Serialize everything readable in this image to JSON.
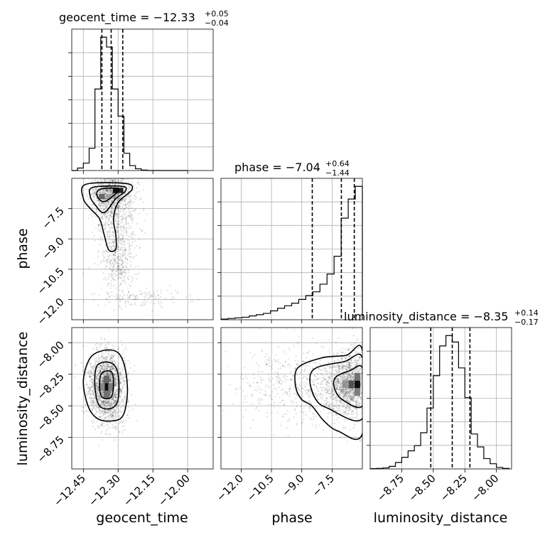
{
  "chart_data": {
    "type": "corner",
    "parameters": [
      {
        "name": "geocent_time",
        "range": [
          -12.5,
          -11.89
        ],
        "ticks": [
          -12.45,
          -12.3,
          -12.15,
          -12.0
        ],
        "tick_labels": [
          "−12.45",
          "−12.30",
          "−12.15",
          "−12.00"
        ],
        "title": {
          "prefix": "geocent_time = −12.33",
          "plus": "+0.05",
          "minus": "−0.04"
        },
        "quantiles": [
          -12.37,
          -12.33,
          -12.28
        ],
        "hist_edges": [
          -12.5,
          -12.475,
          -12.45,
          -12.425,
          -12.4,
          -12.375,
          -12.35,
          -12.325,
          -12.3,
          -12.275,
          -12.25,
          -12.225,
          -12.2,
          -12.175,
          -12.15,
          -12.125,
          -12.1,
          -12.075,
          -12.05,
          -12.025,
          -12.0
        ],
        "hist_counts": [
          0,
          1,
          3,
          9,
          33,
          54,
          50,
          33,
          22,
          7,
          2,
          0.7,
          0.2,
          0,
          0,
          0,
          0,
          0,
          0,
          0
        ]
      },
      {
        "name": "phase",
        "range": [
          -13.0,
          -6.0
        ],
        "ticks": [
          -12.0,
          -10.5,
          -9.0,
          -7.5
        ],
        "tick_labels": [
          "−12.0",
          "−10.5",
          "−9.0",
          "−7.5"
        ],
        "title": {
          "prefix": "phase = −7.04",
          "plus": "+0.64",
          "minus": "−1.44"
        },
        "quantiles": [
          -8.48,
          -7.04,
          -6.4
        ],
        "hist_edges": [
          -13.0,
          -12.65,
          -12.3,
          -11.95,
          -11.6,
          -11.25,
          -10.9,
          -10.55,
          -10.2,
          -9.85,
          -9.5,
          -9.15,
          -8.8,
          -8.45,
          -8.1,
          -7.75,
          -7.4,
          -7.05,
          -6.7,
          -6.35,
          -6.0
        ],
        "hist_counts": [
          0.5,
          1,
          1.5,
          2,
          3,
          4,
          5,
          7,
          9,
          11,
          13,
          16,
          19,
          22,
          28,
          36,
          50,
          80,
          95,
          105
        ]
      },
      {
        "name": "luminosity_distance",
        "range": [
          -9.0,
          -7.88
        ],
        "ticks": [
          -8.75,
          -8.5,
          -8.25,
          -8.0
        ],
        "tick_labels": [
          "−8.75",
          "−8.50",
          "−8.25",
          "−8.00"
        ],
        "title": {
          "prefix": "luminosity_distance = −8.35",
          "plus": "+0.14",
          "minus": "−0.17"
        },
        "quantiles": [
          -8.52,
          -8.35,
          -8.21
        ],
        "hist_edges": [
          -9.0,
          -8.95,
          -8.9,
          -8.85,
          -8.8,
          -8.75,
          -8.7,
          -8.65,
          -8.6,
          -8.55,
          -8.5,
          -8.45,
          -8.4,
          -8.35,
          -8.3,
          -8.25,
          -8.2,
          -8.15,
          -8.1,
          -8.05,
          -8.0,
          -7.95,
          -7.9
        ],
        "hist_counts": [
          0.2,
          0.4,
          0.8,
          2,
          5,
          9,
          14,
          18,
          28,
          47,
          72,
          95,
          103,
          98,
          78,
          55,
          27,
          17,
          8,
          4,
          1.2,
          0.4
        ]
      }
    ],
    "pairs": [
      {
        "x": "geocent_time",
        "y": "phase",
        "cores": [
          {
            "cx": -12.33,
            "cy": -6.75,
            "sx": 0.045,
            "sy": 0.55,
            "n": 1100,
            "rot": 0
          },
          {
            "cx": -12.31,
            "cy": -8.5,
            "sx": 0.05,
            "sy": 0.9,
            "n": 450,
            "rot": 0
          },
          {
            "cx": -12.3,
            "cy": -10.3,
            "sx": 0.035,
            "sy": 0.6,
            "n": 250,
            "rot": 0
          },
          {
            "cx": -12.2,
            "cy": -11.9,
            "sx": 0.09,
            "sy": 0.25,
            "n": 140,
            "rot": 0
          }
        ],
        "contours": [
          [
            [
              -12.44,
              -6.3
            ],
            [
              -12.27,
              -6.25
            ],
            [
              -12.24,
              -6.55
            ],
            [
              -12.3,
              -7.2
            ],
            [
              -12.32,
              -8.0
            ],
            [
              -12.31,
              -8.8
            ],
            [
              -12.31,
              -9.5
            ],
            [
              -12.34,
              -9.55
            ],
            [
              -12.36,
              -8.8
            ],
            [
              -12.38,
              -8.0
            ],
            [
              -12.42,
              -7.5
            ],
            [
              -12.45,
              -7.0
            ]
          ],
          [
            [
              -12.41,
              -6.45
            ],
            [
              -12.28,
              -6.4
            ],
            [
              -12.27,
              -6.65
            ],
            [
              -12.31,
              -7.0
            ],
            [
              -12.36,
              -7.7
            ],
            [
              -12.4,
              -7.3
            ],
            [
              -12.42,
              -6.9
            ]
          ],
          [
            [
              -12.38,
              -6.55
            ],
            [
              -12.3,
              -6.5
            ],
            [
              -12.31,
              -6.75
            ],
            [
              -12.36,
              -7.15
            ],
            [
              -12.39,
              -6.9
            ]
          ]
        ],
        "bins": [
          {
            "x": -12.31,
            "y": -6.6,
            "w": 0.025,
            "h": 0.25,
            "v": 1.0
          },
          {
            "x": -12.29,
            "y": -6.6,
            "w": 0.025,
            "h": 0.25,
            "v": 0.9
          },
          {
            "x": -12.37,
            "y": -6.9,
            "w": 0.025,
            "h": 0.25,
            "v": 0.6
          },
          {
            "x": -12.34,
            "y": -6.9,
            "w": 0.025,
            "h": 0.25,
            "v": 0.35
          }
        ]
      },
      {
        "x": "geocent_time",
        "y": "luminosity_distance",
        "cores": [
          {
            "cx": -12.35,
            "cy": -8.35,
            "sx": 0.04,
            "sy": 0.14,
            "n": 1900,
            "rot": 0
          }
        ],
        "contours": [
          [
            [
              -12.42,
              -8.12
            ],
            [
              -12.36,
              -8.06
            ],
            [
              -12.3,
              -8.08
            ],
            [
              -12.27,
              -8.2
            ],
            [
              -12.26,
              -8.4
            ],
            [
              -12.28,
              -8.58
            ],
            [
              -12.33,
              -8.62
            ],
            [
              -12.39,
              -8.6
            ],
            [
              -12.43,
              -8.5
            ],
            [
              -12.45,
              -8.3
            ]
          ],
          [
            [
              -12.39,
              -8.18
            ],
            [
              -12.33,
              -8.16
            ],
            [
              -12.3,
              -8.25
            ],
            [
              -12.3,
              -8.45
            ],
            [
              -12.33,
              -8.52
            ],
            [
              -12.38,
              -8.5
            ],
            [
              -12.4,
              -8.35
            ]
          ],
          [
            [
              -12.37,
              -8.24
            ],
            [
              -12.33,
              -8.23
            ],
            [
              -12.32,
              -8.32
            ],
            [
              -12.33,
              -8.43
            ],
            [
              -12.37,
              -8.43
            ],
            [
              -12.38,
              -8.33
            ]
          ]
        ],
        "bins": [
          {
            "x": -12.35,
            "y": -8.35,
            "w": 0.025,
            "h": 0.06,
            "v": 1.0
          },
          {
            "x": -12.35,
            "y": -8.29,
            "w": 0.025,
            "h": 0.06,
            "v": 0.6
          },
          {
            "x": -12.35,
            "y": -8.41,
            "w": 0.025,
            "h": 0.06,
            "v": 0.55
          },
          {
            "x": -12.33,
            "y": -8.35,
            "w": 0.025,
            "h": 0.06,
            "v": 0.5
          },
          {
            "x": -12.37,
            "y": -8.35,
            "w": 0.025,
            "h": 0.06,
            "v": 0.45
          }
        ]
      },
      {
        "x": "phase",
        "y": "luminosity_distance",
        "cores": [
          {
            "cx": -6.6,
            "cy": -8.33,
            "sx": 0.55,
            "sy": 0.13,
            "n": 1400,
            "rot": 0
          },
          {
            "cx": -8.3,
            "cy": -8.35,
            "sx": 1.1,
            "sy": 0.15,
            "n": 450,
            "rot": 0
          },
          {
            "cx": -10.5,
            "cy": -8.3,
            "sx": 1.0,
            "sy": 0.15,
            "n": 180,
            "rot": 0
          }
        ],
        "contours": [
          [
            [
              -6.0,
              -8.06
            ],
            [
              -6.8,
              -8.1
            ],
            [
              -8.0,
              -8.12
            ],
            [
              -9.2,
              -8.2
            ],
            [
              -9.3,
              -8.35
            ],
            [
              -9.0,
              -8.45
            ],
            [
              -8.5,
              -8.5
            ],
            [
              -7.9,
              -8.62
            ],
            [
              -7.2,
              -8.7
            ],
            [
              -6.0,
              -8.72
            ]
          ],
          [
            [
              -6.0,
              -8.12
            ],
            [
              -6.9,
              -8.15
            ],
            [
              -8.3,
              -8.2
            ],
            [
              -8.6,
              -8.3
            ],
            [
              -8.3,
              -8.45
            ],
            [
              -7.7,
              -8.52
            ],
            [
              -6.0,
              -8.6
            ]
          ],
          [
            [
              -6.0,
              -8.2
            ],
            [
              -6.6,
              -8.22
            ],
            [
              -7.3,
              -8.27
            ],
            [
              -7.4,
              -8.35
            ],
            [
              -7.0,
              -8.45
            ],
            [
              -6.0,
              -8.5
            ]
          ]
        ],
        "bins": [
          {
            "x": -6.25,
            "y": -8.33,
            "w": 0.28,
            "h": 0.06,
            "v": 1.0
          },
          {
            "x": -6.55,
            "y": -8.33,
            "w": 0.28,
            "h": 0.06,
            "v": 0.7
          },
          {
            "x": -6.25,
            "y": -8.27,
            "w": 0.28,
            "h": 0.06,
            "v": 0.55
          },
          {
            "x": -6.25,
            "y": -8.39,
            "w": 0.28,
            "h": 0.06,
            "v": 0.5
          },
          {
            "x": -6.85,
            "y": -8.33,
            "w": 0.28,
            "h": 0.06,
            "v": 0.4
          }
        ]
      }
    ],
    "axis_labels": {
      "phase_y": "phase",
      "luminosity_distance_y": "luminosity_distance",
      "geocent_time_x": "geocent_time",
      "phase_x": "phase",
      "luminosity_distance_x": "luminosity_distance"
    }
  }
}
